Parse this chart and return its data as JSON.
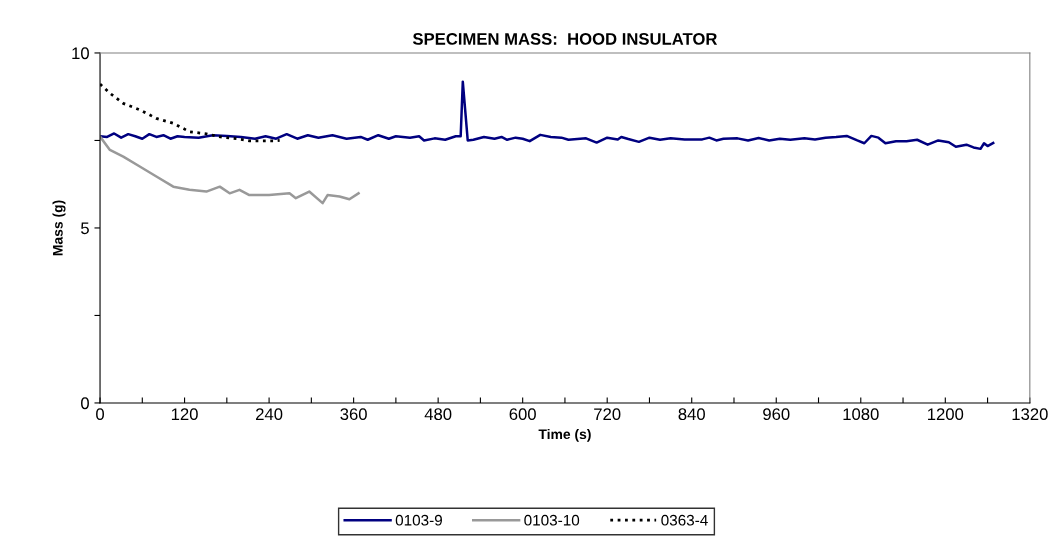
{
  "chart_data": {
    "type": "line",
    "title": "SPECIMEN MASS:  HOOD INSULATOR",
    "xlabel": "Time (s)",
    "ylabel": "Mass (g)",
    "xlim": [
      0,
      1320
    ],
    "ylim": [
      0,
      10
    ],
    "xticks": [
      0,
      {
        "value": 60,
        "label": null
      },
      120,
      {
        "value": 180,
        "label": null
      },
      240,
      {
        "value": 300,
        "label": null
      },
      360,
      {
        "value": 420,
        "label": null
      },
      480,
      {
        "value": 540,
        "label": null
      },
      600,
      {
        "value": 660,
        "label": null
      },
      720,
      {
        "value": 780,
        "label": null
      },
      840,
      {
        "value": 900,
        "label": null
      },
      960,
      {
        "value": 1020,
        "label": null
      },
      1080,
      {
        "value": 1140,
        "label": null
      },
      1200,
      {
        "value": 1260,
        "label": null
      },
      1320
    ],
    "yticks": [
      0,
      {
        "value": 2.5,
        "label": null
      },
      5,
      {
        "value": 7.5,
        "label": null
      },
      10
    ],
    "grid": false,
    "legend": "bottom",
    "marker": "none",
    "series": [
      {
        "name": "0103-9",
        "color": "#000080",
        "line_style": "solid",
        "x": [
          0,
          10,
          20,
          30,
          40,
          50,
          60,
          70,
          80,
          90,
          100,
          110,
          120,
          140,
          160,
          180,
          200,
          220,
          235,
          250,
          265,
          280,
          295,
          310,
          330,
          350,
          370,
          380,
          395,
          410,
          420,
          440,
          453,
          460,
          475,
          490,
          505,
          512,
          515,
          522,
          530,
          545,
          560,
          570,
          578,
          590,
          600,
          610,
          625,
          640,
          655,
          665,
          690,
          705,
          720,
          735,
          740,
          750,
          765,
          780,
          795,
          810,
          830,
          855,
          865,
          875,
          885,
          905,
          920,
          935,
          950,
          965,
          980,
          1000,
          1015,
          1030,
          1045,
          1060,
          1075,
          1085,
          1095,
          1105,
          1115,
          1130,
          1145,
          1160,
          1175,
          1190,
          1205,
          1215,
          1230,
          1240,
          1250,
          1255,
          1260,
          1268
        ],
        "values": [
          7.62,
          7.6,
          7.7,
          7.58,
          7.68,
          7.62,
          7.55,
          7.68,
          7.6,
          7.65,
          7.55,
          7.62,
          7.6,
          7.58,
          7.65,
          7.63,
          7.6,
          7.55,
          7.62,
          7.55,
          7.68,
          7.55,
          7.65,
          7.58,
          7.65,
          7.55,
          7.6,
          7.52,
          7.65,
          7.55,
          7.62,
          7.58,
          7.62,
          7.5,
          7.56,
          7.52,
          7.62,
          7.62,
          9.18,
          7.5,
          7.52,
          7.6,
          7.55,
          7.6,
          7.52,
          7.58,
          7.55,
          7.48,
          7.66,
          7.6,
          7.58,
          7.52,
          7.56,
          7.44,
          7.58,
          7.53,
          7.6,
          7.54,
          7.46,
          7.58,
          7.52,
          7.56,
          7.53,
          7.53,
          7.58,
          7.5,
          7.55,
          7.56,
          7.5,
          7.57,
          7.5,
          7.55,
          7.52,
          7.56,
          7.53,
          7.58,
          7.6,
          7.63,
          7.5,
          7.42,
          7.63,
          7.58,
          7.42,
          7.48,
          7.48,
          7.52,
          7.38,
          7.5,
          7.45,
          7.32,
          7.38,
          7.3,
          7.26,
          7.42,
          7.34,
          7.43
        ]
      },
      {
        "name": "0103-10",
        "color": "#999999",
        "line_style": "solid",
        "x": [
          0,
          14,
          33,
          57,
          80,
          104,
          127,
          151,
          170,
          184,
          198,
          212,
          240,
          269,
          278,
          297,
          316,
          323,
          340,
          354,
          367
        ],
        "values": [
          7.61,
          7.23,
          7.04,
          6.75,
          6.47,
          6.18,
          6.09,
          6.04,
          6.18,
          5.99,
          6.09,
          5.94,
          5.94,
          5.99,
          5.85,
          6.04,
          5.71,
          5.94,
          5.9,
          5.82,
          5.99
        ]
      },
      {
        "name": "0363-4",
        "color": "#000000",
        "line_style": "dotted",
        "x": [
          0,
          14,
          33,
          57,
          80,
          104,
          127,
          151,
          174,
          198,
          212,
          231,
          250,
          255
        ],
        "values": [
          9.11,
          8.85,
          8.56,
          8.37,
          8.13,
          7.99,
          7.75,
          7.69,
          7.59,
          7.54,
          7.49,
          7.49,
          7.49,
          7.5
        ]
      }
    ]
  }
}
